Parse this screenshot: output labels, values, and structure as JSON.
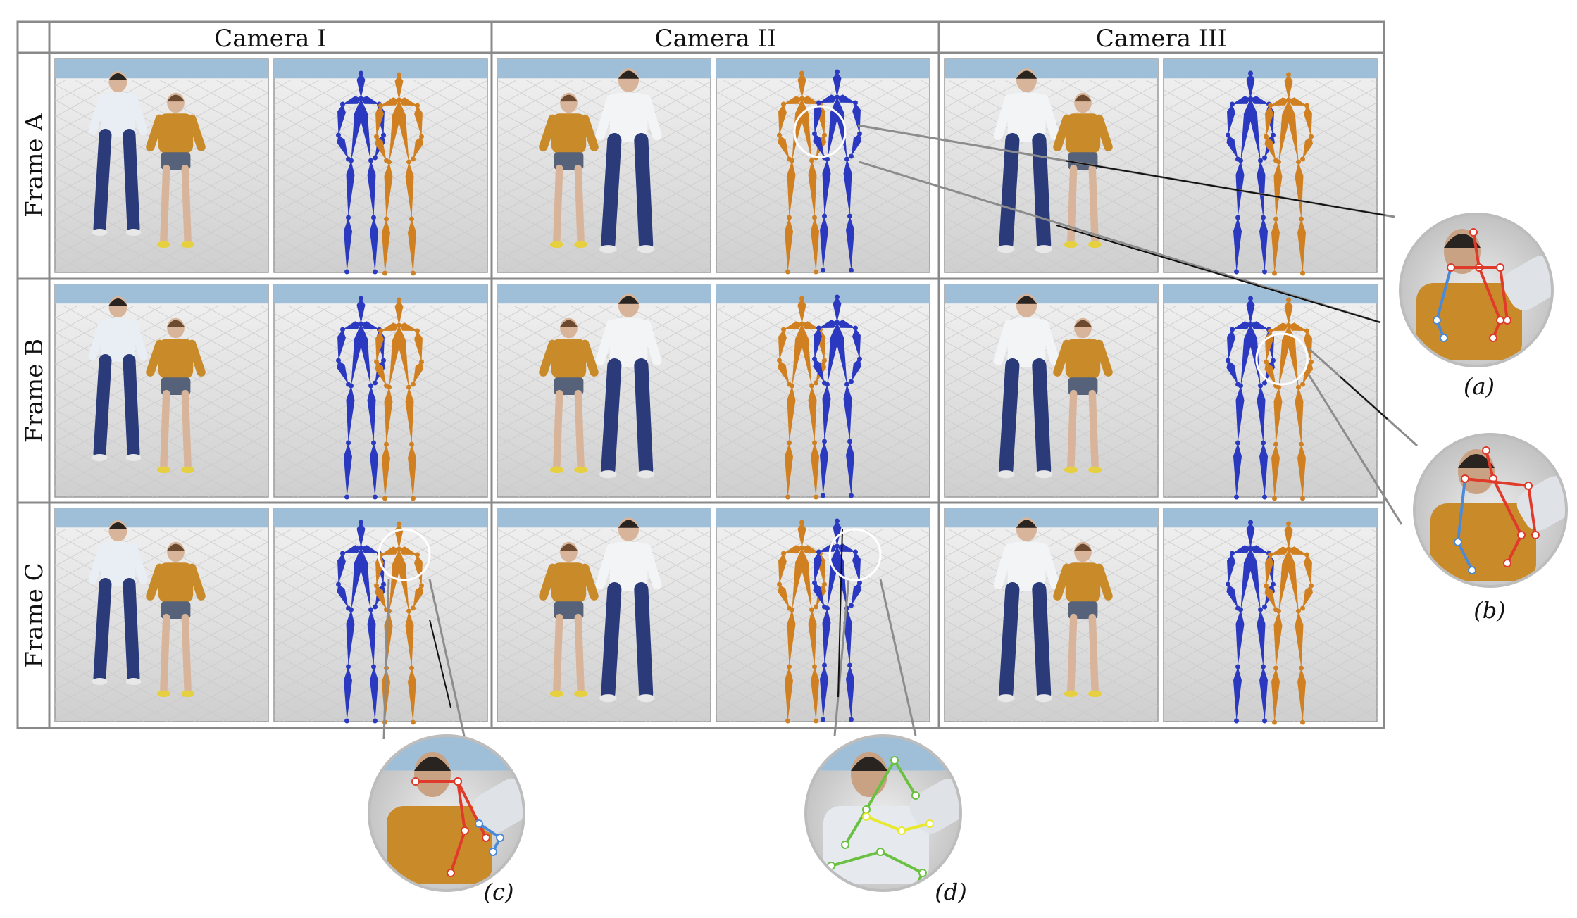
{
  "columns": [
    "Camera I",
    "Camera II",
    "Camera III"
  ],
  "rows": [
    "Frame A",
    "Frame B",
    "Frame C"
  ],
  "panel_kinds": [
    "rendered-scene",
    "skeleton-pose"
  ],
  "colors": {
    "grid": "#8a8a8a",
    "sky": "#9fbfd9",
    "floor": "#dcdcdc",
    "jeans": "#2b3b7a",
    "gold": "#c98a2a",
    "blue_skeleton": "#2a39c0",
    "orange_skeleton": "#d08020",
    "zoom_red": "#e03a2a",
    "zoom_blue": "#4a8ad8",
    "zoom_green": "#6ac040",
    "zoom_yellow": "#e8e830"
  },
  "insets": [
    {
      "id": "a",
      "label": "(a)"
    },
    {
      "id": "b",
      "label": "(b)"
    },
    {
      "id": "c",
      "label": "(c)"
    },
    {
      "id": "d",
      "label": "(d)"
    }
  ]
}
